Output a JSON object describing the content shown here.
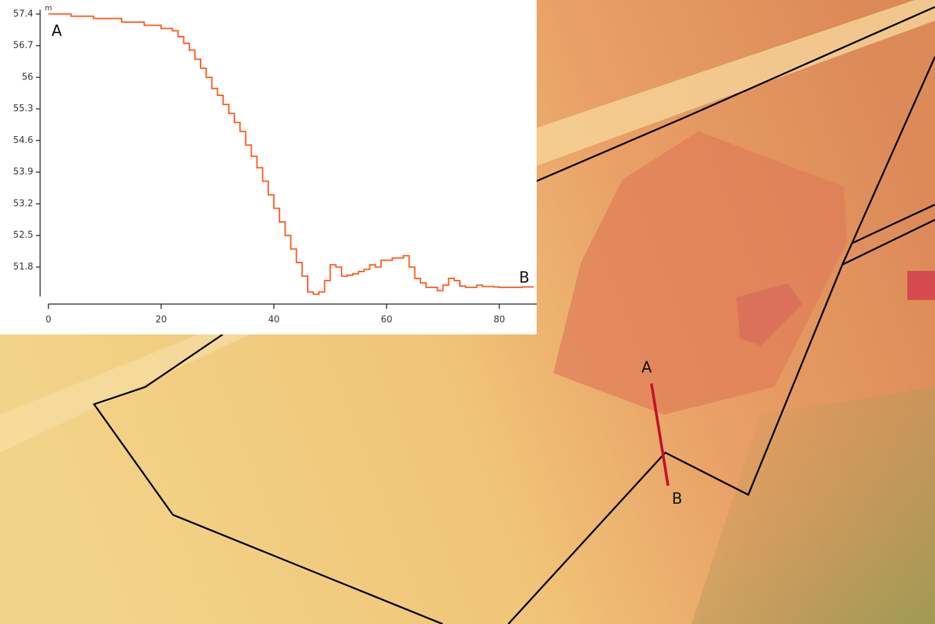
{
  "chart_data": {
    "type": "line",
    "y_unit": "m",
    "annotations": [
      "A",
      "B"
    ],
    "x": [
      0,
      4,
      8,
      13,
      17,
      20,
      22,
      23,
      24,
      25,
      26,
      27,
      28,
      29,
      30,
      31,
      32,
      33,
      34,
      35,
      36,
      37,
      38,
      39,
      40,
      41,
      42,
      43,
      44,
      45,
      46,
      47,
      48,
      49,
      50,
      51,
      52,
      53,
      54,
      55,
      56,
      57,
      58,
      59,
      60,
      61,
      62,
      63,
      64,
      65,
      66,
      67,
      68,
      69,
      70,
      71,
      72,
      73,
      74,
      75,
      76,
      77,
      78,
      79,
      80,
      82,
      84,
      86
    ],
    "values": [
      57.4,
      57.35,
      57.3,
      57.22,
      57.15,
      57.08,
      57.03,
      56.9,
      56.75,
      56.6,
      56.4,
      56.2,
      56.0,
      55.75,
      55.6,
      55.4,
      55.2,
      55.0,
      54.8,
      54.5,
      54.25,
      54.0,
      53.7,
      53.4,
      53.1,
      52.8,
      52.5,
      52.2,
      51.9,
      51.6,
      51.25,
      51.2,
      51.25,
      51.5,
      51.85,
      51.8,
      51.6,
      51.62,
      51.65,
      51.7,
      51.75,
      51.85,
      51.8,
      51.95,
      51.95,
      52.0,
      52.0,
      52.05,
      51.8,
      51.55,
      51.45,
      51.35,
      51.35,
      51.28,
      51.4,
      51.55,
      51.5,
      51.38,
      51.35,
      51.35,
      51.4,
      51.37,
      51.37,
      51.36,
      51.35,
      51.35,
      51.36,
      51.35
    ],
    "color": "#ff5a1f",
    "xlim": [
      0,
      86.5
    ],
    "xticks": [
      0,
      20,
      40,
      60,
      80
    ],
    "ylim": [
      51.15,
      57.45
    ],
    "yticks": [
      57.4,
      56.7,
      56,
      55.3,
      54.6,
      53.9,
      53.2,
      52.5,
      51.8
    ]
  },
  "map": {
    "labels": [
      "A",
      "B"
    ]
  }
}
